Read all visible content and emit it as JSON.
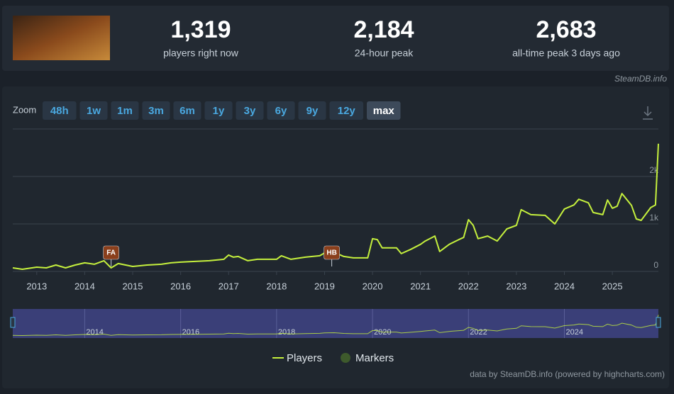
{
  "header": {
    "stats": [
      {
        "value": "1,319",
        "label": "players right now"
      },
      {
        "value": "2,184",
        "label": "24-hour peak"
      },
      {
        "value": "2,683",
        "label": "all-time peak 3 days ago"
      }
    ],
    "source": "SteamDB.info"
  },
  "zoom": {
    "label": "Zoom",
    "buttons": [
      "48h",
      "1w",
      "1m",
      "3m",
      "6m",
      "1y",
      "3y",
      "6y",
      "9y",
      "12y",
      "max"
    ],
    "active": "max"
  },
  "chart_data": {
    "type": "line",
    "x": [
      2012.5,
      2012.7,
      2013.0,
      2013.2,
      2013.4,
      2013.6,
      2013.8,
      2014.0,
      2014.2,
      2014.4,
      2014.55,
      2014.7,
      2015.0,
      2015.3,
      2015.6,
      2015.8,
      2016.0,
      2016.3,
      2016.6,
      2016.9,
      2017.0,
      2017.1,
      2017.2,
      2017.4,
      2017.6,
      2018.0,
      2018.1,
      2018.3,
      2018.6,
      2018.9,
      2019.0,
      2019.2,
      2019.4,
      2019.6,
      2019.9,
      2020.0,
      2020.1,
      2020.2,
      2020.5,
      2020.6,
      2020.8,
      2021.0,
      2021.1,
      2021.3,
      2021.4,
      2021.6,
      2021.8,
      2021.9,
      2022.0,
      2022.1,
      2022.2,
      2022.4,
      2022.6,
      2022.8,
      2023.0,
      2023.1,
      2023.3,
      2023.6,
      2023.8,
      2024.0,
      2024.2,
      2024.3,
      2024.5,
      2024.6,
      2024.8,
      2024.9,
      2025.0,
      2025.1,
      2025.2,
      2025.4,
      2025.5,
      2025.6,
      2025.8,
      2025.9,
      2025.96
    ],
    "series": [
      {
        "name": "Players",
        "color": "#c5f03d",
        "values": [
          75,
          45,
          90,
          75,
          135,
          75,
          135,
          180,
          150,
          225,
          75,
          165,
          105,
          135,
          150,
          180,
          195,
          210,
          225,
          255,
          345,
          300,
          315,
          225,
          255,
          255,
          330,
          255,
          300,
          330,
          390,
          405,
          315,
          285,
          285,
          690,
          670,
          495,
          495,
          375,
          465,
          570,
          640,
          745,
          420,
          570,
          670,
          715,
          1090,
          970,
          690,
          745,
          640,
          895,
          970,
          1300,
          1195,
          1180,
          1000,
          1315,
          1400,
          1520,
          1445,
          1240,
          1195,
          1505,
          1330,
          1375,
          1640,
          1390,
          1105,
          1075,
          1345,
          1400,
          2690
        ]
      }
    ],
    "markers": {
      "name": "Markers",
      "color": "#3e5a2c",
      "items": [
        {
          "x": 2014.55,
          "label": "FA"
        },
        {
          "x": 2019.15,
          "label": "HB"
        }
      ]
    },
    "xlim": [
      2012.5,
      2025.96
    ],
    "xticks": [
      2013,
      2014,
      2015,
      2016,
      2017,
      2018,
      2019,
      2020,
      2021,
      2022,
      2023,
      2024,
      2025
    ],
    "ylim": [
      0,
      3000
    ],
    "yticks": [
      0,
      {
        "value": 1000,
        "label": "1k"
      },
      {
        "value": 2000,
        "label": "2k"
      }
    ],
    "grid": true,
    "navigator": {
      "xticks": [
        2014,
        2016,
        2018,
        2020,
        2022,
        2024
      ]
    }
  },
  "footer": "data by SteamDB.info (powered by highcharts.com)"
}
